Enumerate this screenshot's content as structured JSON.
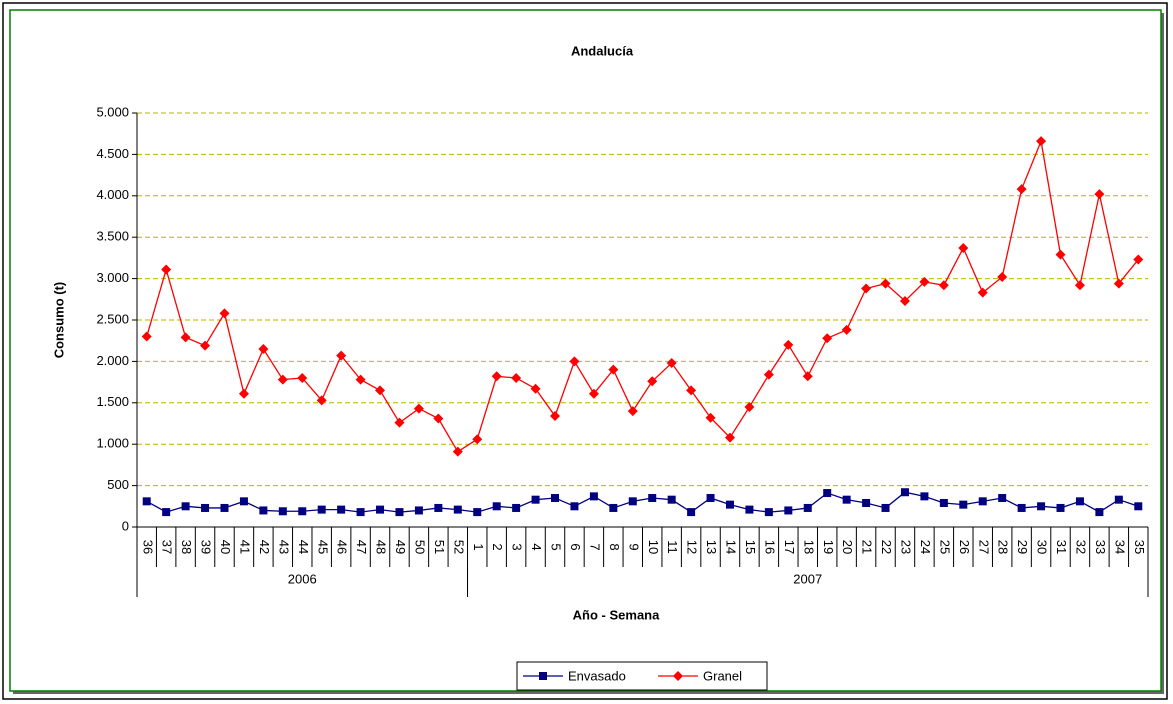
{
  "chart_data": {
    "type": "line",
    "title": "Andalucía",
    "x_label": "Año - Semana",
    "y_label": "Consumo (t)",
    "categories": [
      "36",
      "37",
      "38",
      "39",
      "40",
      "41",
      "42",
      "43",
      "44",
      "45",
      "46",
      "47",
      "48",
      "49",
      "50",
      "51",
      "52",
      "1",
      "2",
      "3",
      "4",
      "5",
      "6",
      "7",
      "8",
      "9",
      "10",
      "11",
      "12",
      "13",
      "14",
      "15",
      "16",
      "17",
      "18",
      "19",
      "20",
      "21",
      "22",
      "23",
      "24",
      "25",
      "26",
      "27",
      "28",
      "29",
      "30",
      "31",
      "32",
      "33",
      "34",
      "35"
    ],
    "category_groups": [
      "2006",
      "2007"
    ],
    "series": [
      {
        "name": "Envasado",
        "color": "#000080",
        "marker": "square",
        "values": [
          310,
          180,
          250,
          230,
          230,
          310,
          200,
          190,
          190,
          210,
          210,
          180,
          210,
          180,
          200,
          230,
          210,
          180,
          250,
          230,
          330,
          350,
          250,
          370,
          230,
          310,
          350,
          330,
          180,
          350,
          270,
          210,
          180,
          200,
          230,
          410,
          330,
          290,
          230,
          420,
          370,
          290,
          270,
          310,
          350,
          230,
          250,
          230,
          310,
          180,
          330,
          250
        ]
      },
      {
        "name": "Granel",
        "color": "#ff0000",
        "marker": "diamond",
        "values": [
          2300,
          3110,
          2290,
          2190,
          2580,
          1610,
          2150,
          1780,
          1800,
          1530,
          2070,
          1780,
          1650,
          1260,
          1430,
          1310,
          910,
          1060,
          1820,
          1800,
          1670,
          1340,
          2000,
          1610,
          1900,
          1400,
          1760,
          1980,
          1650,
          1320,
          1080,
          1450,
          1840,
          2200,
          1820,
          2280,
          2380,
          2880,
          2940,
          2730,
          2960,
          2920,
          3370,
          2830,
          3020,
          4080,
          4660,
          3290,
          2920,
          4020,
          2940,
          3230
        ]
      }
    ],
    "ylim": [
      0,
      5000
    ],
    "yticks": [
      0,
      500,
      {
        "value": 1000,
        "label": "1.000"
      },
      {
        "value": 1500,
        "label": "1.500"
      },
      {
        "value": 2000,
        "label": "2.000"
      },
      {
        "value": 2500,
        "label": "2.500"
      },
      {
        "value": 3000,
        "label": "3.000"
      },
      {
        "value": 3500,
        "label": "3.500"
      },
      {
        "value": 4000,
        "label": "4.000"
      },
      {
        "value": 4500,
        "label": "4.500"
      },
      {
        "value": 5000,
        "label": "5.000"
      }
    ],
    "grid": true,
    "legend": "bottom"
  }
}
